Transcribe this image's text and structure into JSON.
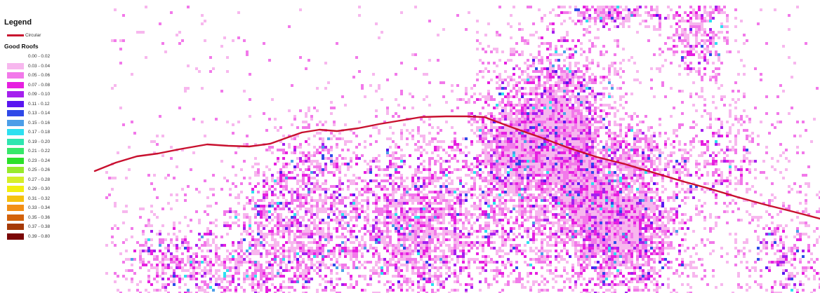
{
  "legend": {
    "title": "Legend",
    "line_layer": {
      "label": "Circular",
      "color": "#c8102e"
    },
    "raster_title": "Good Roofs",
    "classes": [
      {
        "label": "0.00 - 0.02",
        "color": "#ffffff"
      },
      {
        "label": "0.03 - 0.04",
        "color": "#f7b7ee"
      },
      {
        "label": "0.05 - 0.06",
        "color": "#f279ea"
      },
      {
        "label": "0.07 - 0.08",
        "color": "#e61fe0"
      },
      {
        "label": "0.09 - 0.10",
        "color": "#a520ee"
      },
      {
        "label": "0.11 - 0.12",
        "color": "#5a16f0"
      },
      {
        "label": "0.13 - 0.14",
        "color": "#2f49e8"
      },
      {
        "label": "0.15 - 0.16",
        "color": "#4c9ee8"
      },
      {
        "label": "0.17 - 0.18",
        "color": "#2ee0f0"
      },
      {
        "label": "0.19 - 0.20",
        "color": "#2fe6b0"
      },
      {
        "label": "0.21 - 0.22",
        "color": "#37e86a"
      },
      {
        "label": "0.23 - 0.24",
        "color": "#2ce02a"
      },
      {
        "label": "0.25 - 0.26",
        "color": "#98ea2c"
      },
      {
        "label": "0.27 - 0.28",
        "color": "#d5ee2a"
      },
      {
        "label": "0.29 - 0.30",
        "color": "#f2ef10"
      },
      {
        "label": "0.31 - 0.32",
        "color": "#f5c20f"
      },
      {
        "label": "0.33 - 0.34",
        "color": "#f28f16"
      },
      {
        "label": "0.35 - 0.36",
        "color": "#d2620c"
      },
      {
        "label": "0.37 - 0.38",
        "color": "#a53a08"
      },
      {
        "label": "0.39 - 0.80",
        "color": "#7a0707"
      }
    ]
  }
}
